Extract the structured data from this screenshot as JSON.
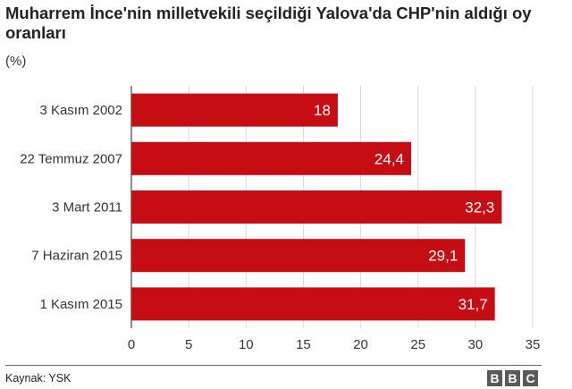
{
  "chart_data": {
    "type": "bar",
    "orientation": "horizontal",
    "title": "Muharrem İnce'nin milletvekili seçildiği Yalova'da CHP'nin aldığı oy oranları",
    "subtitle": "(%)",
    "categories": [
      "3 Kasım 2002",
      "22 Temmuz 2007",
      "3 Mart 2011",
      "7 Haziran 2015",
      "1 Kasım 2015"
    ],
    "values": [
      18,
      24.4,
      32.3,
      29.1,
      31.7
    ],
    "value_labels": [
      "18",
      "24,4",
      "32,3",
      "29,1",
      "31,7"
    ],
    "x_ticks": [
      0,
      5,
      10,
      15,
      20,
      25,
      30,
      35
    ],
    "xlim": [
      0,
      35
    ],
    "xlabel": "",
    "ylabel": "",
    "grid": true,
    "bar_color": "#c50d13",
    "label_color": "#ffffff"
  },
  "footer": {
    "source": "Kaynak: YSK",
    "logo": [
      "B",
      "B",
      "C"
    ]
  }
}
